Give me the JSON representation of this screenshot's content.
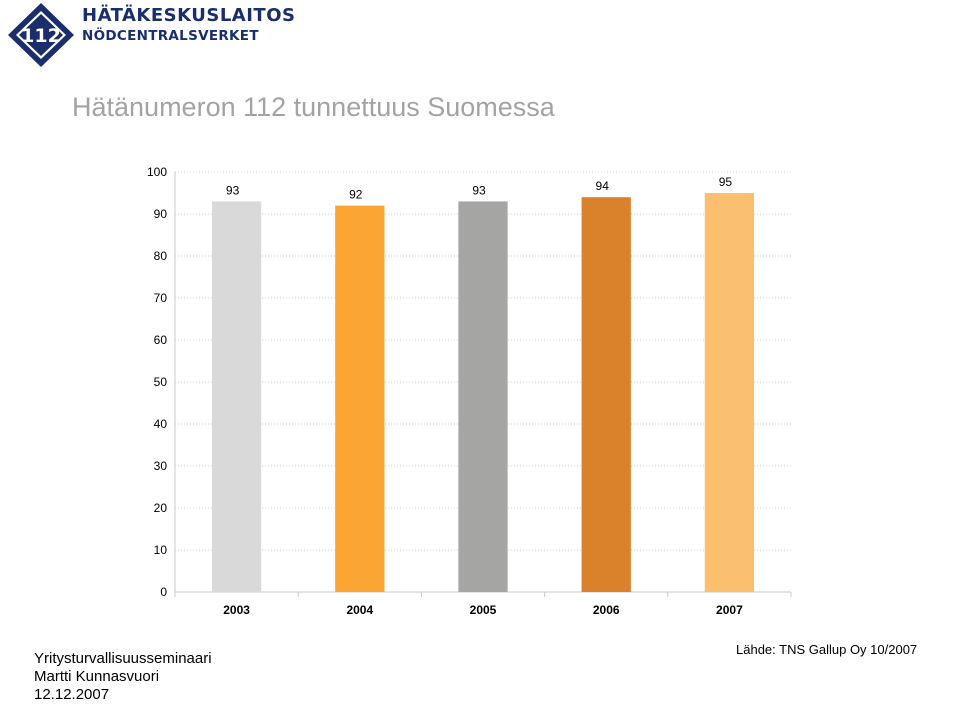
{
  "logo": {
    "number": "112",
    "line1": "HÄTÄKESKUSLAITOS",
    "line2": "NÖDCENTRALSVERKET"
  },
  "title": "Hätänumeron 112 tunnettuus Suomessa",
  "chart_data": {
    "type": "bar",
    "categories": [
      "2003",
      "2004",
      "2005",
      "2006",
      "2007"
    ],
    "values": [
      93,
      92,
      93,
      94,
      95
    ],
    "colors": [
      "#d9d9d9",
      "#fba634",
      "#a5a5a3",
      "#d9822b",
      "#fbc06f"
    ],
    "ylim": [
      0,
      100
    ],
    "yticks": [
      0,
      10,
      20,
      30,
      40,
      50,
      60,
      70,
      80,
      90,
      100
    ],
    "grid": true,
    "data_labels": true
  },
  "footer": {
    "event": "Yritysturvallisuusseminaari",
    "author": "Martti Kunnasvuori",
    "date": "12.12.2007",
    "source": "Lähde: TNS Gallup Oy 10/2007"
  }
}
